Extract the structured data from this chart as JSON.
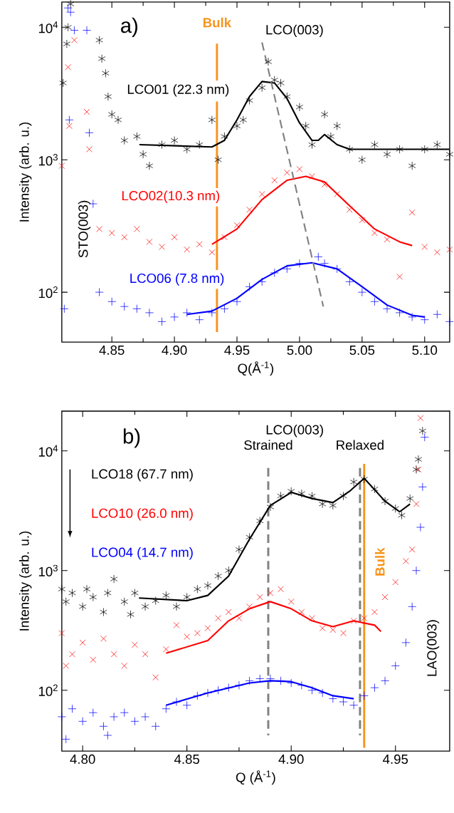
{
  "chart_data": [
    {
      "type": "scatter",
      "log": "y",
      "xlim": [
        4.81,
        5.12
      ],
      "ylim": [
        42,
        15500
      ],
      "xticks": [
        {
          "value": 4.85,
          "label": "4.85"
        },
        {
          "value": 4.9,
          "label": "4.90"
        },
        {
          "value": 4.95,
          "label": "4.95"
        },
        {
          "value": 5.0,
          "label": "5.00"
        },
        {
          "value": 5.05,
          "label": "5.05"
        },
        {
          "value": 5.1,
          "label": "5.10"
        }
      ],
      "yticks": [
        {
          "value": 100,
          "label": "10$^{2}$"
        },
        {
          "value": 1000,
          "label": "10$^{3}$"
        },
        {
          "value": 10000,
          "label": "10$^{4}$"
        }
      ],
      "xlabel": "Q(Å$^{-1}$)",
      "ylabel": "Intensity (arb. u.)",
      "series": [
        {
          "name": "LCO01 (22.3 nm)",
          "color": "#000000",
          "x": [
            4.811,
            4.814,
            4.815,
            4.817,
            4.84,
            4.842,
            4.845,
            4.847,
            4.85,
            4.855,
            4.86,
            4.87,
            4.875,
            4.88,
            4.89,
            4.9,
            4.91,
            4.92,
            4.93,
            4.935,
            4.94,
            4.95,
            4.955,
            4.96,
            4.97,
            4.975,
            4.98,
            4.985,
            4.99,
            5.0,
            5.005,
            5.01,
            5.02,
            5.025,
            5.03,
            5.04,
            5.05,
            5.06,
            5.07,
            5.08,
            5.09,
            5.1,
            5.11,
            5.12
          ],
          "values": [
            3800,
            7500,
            10000,
            15000,
            8000,
            5800,
            4500,
            3000,
            2200,
            2000,
            1400,
            1500,
            1100,
            900,
            1300,
            1400,
            1200,
            1300,
            2000,
            1000,
            1500,
            1800,
            2000,
            2800,
            3500,
            5500,
            4000,
            3800,
            3000,
            2500,
            1800,
            1300,
            2200,
            1500,
            1800,
            1200,
            1000,
            1300,
            1100,
            1200,
            900,
            1200,
            1300,
            1100
          ]
        },
        {
          "type": "line",
          "color": "#000000",
          "marker": "none",
          "x": [
            4.872,
            4.93,
            4.94,
            4.95,
            4.96,
            4.97,
            4.98,
            4.99,
            5.0,
            5.01,
            5.015,
            5.02,
            5.03,
            5.04,
            5.12
          ],
          "values": [
            1300,
            1250,
            1400,
            2000,
            3000,
            3900,
            3800,
            2900,
            1900,
            1400,
            1400,
            1550,
            1300,
            1200,
            1200
          ]
        },
        {
          "name": "LCO02(10.3 nm)",
          "color": "#ff0000",
          "marker": "cross",
          "x": [
            4.81,
            4.815,
            4.816,
            4.82,
            4.83,
            4.832,
            4.84,
            4.85,
            4.86,
            4.87,
            4.88,
            4.89,
            4.9,
            4.91,
            4.92,
            4.93,
            4.94,
            4.95,
            4.96,
            4.97,
            4.98,
            4.99,
            5.0,
            5.01,
            5.02,
            5.03,
            5.04,
            5.05,
            5.06,
            5.07,
            5.08,
            5.09,
            5.1,
            5.11,
            5.12
          ],
          "values": [
            900,
            5000,
            1800,
            8000,
            2300,
            1200,
            300,
            280,
            260,
            300,
            240,
            220,
            260,
            210,
            230,
            200,
            260,
            320,
            420,
            550,
            700,
            800,
            850,
            750,
            650,
            550,
            420,
            350,
            280,
            250,
            131,
            400,
            220,
            200,
            210
          ]
        },
        {
          "type": "line",
          "color": "#ff0000",
          "marker": "none",
          "x": [
            4.93,
            4.95,
            4.97,
            4.99,
            5.005,
            5.02,
            5.04,
            5.06,
            5.08,
            5.09
          ],
          "values": [
            230,
            300,
            500,
            700,
            750,
            680,
            450,
            300,
            240,
            225
          ]
        },
        {
          "name": "LCO06 (7.8 nm)",
          "color": "#0000ff",
          "marker": "plus",
          "x": [
            4.812,
            4.815,
            4.816,
            4.817,
            4.82,
            4.83,
            4.832,
            4.835,
            4.84,
            4.85,
            4.86,
            4.87,
            4.88,
            4.89,
            4.9,
            4.91,
            4.92,
            4.93,
            4.94,
            4.95,
            4.96,
            4.97,
            4.98,
            4.99,
            5.0,
            5.015,
            5.02,
            5.03,
            5.04,
            5.05,
            5.06,
            5.07,
            5.08,
            5.09,
            5.1,
            5.11,
            5.12
          ],
          "values": [
            75,
            14000,
            2000,
            13000,
            9500,
            9500,
            1600,
            465,
            100,
            85,
            78,
            75,
            70,
            60,
            65,
            70,
            62,
            70,
            75,
            85,
            110,
            120,
            140,
            150,
            165,
            185,
            165,
            150,
            120,
            100,
            85,
            75,
            70,
            65,
            62,
            68,
            60
          ]
        },
        {
          "type": "line",
          "color": "#0000ff",
          "marker": "none",
          "x": [
            4.91,
            4.93,
            4.95,
            4.97,
            4.99,
            5.01,
            5.03,
            5.05,
            5.07,
            5.09,
            5.1
          ],
          "values": [
            68,
            72,
            90,
            125,
            158,
            167,
            150,
            110,
            80,
            67,
            65
          ]
        },
        {
          "type": "line",
          "color": "#808080",
          "marker": "none",
          "line_style": "dashed",
          "x": [
            4.97,
            5.019
          ],
          "values": [
            7700,
            78
          ]
        }
      ],
      "ref_lines": [
        {
          "axis": "x",
          "value": 4.934,
          "label": "Bulk",
          "color": "#f7941d"
        }
      ],
      "annotations": [
        "a)",
        "LCO(003)",
        "STO(003)"
      ]
    },
    {
      "type": "scatter",
      "log": "y",
      "xlim": [
        4.79,
        4.976
      ],
      "ylim": [
        31,
        21500
      ],
      "xticks": [
        {
          "value": 4.8,
          "label": "4.80"
        },
        {
          "value": 4.85,
          "label": "4.85"
        },
        {
          "value": 4.9,
          "label": "4.90"
        },
        {
          "value": 4.95,
          "label": "4.95"
        }
      ],
      "yticks": [
        {
          "value": 100,
          "label": "10$^{2}$"
        },
        {
          "value": 1000,
          "label": "10$^{3}$"
        },
        {
          "value": 10000,
          "label": "10$^{4}$"
        }
      ],
      "xlabel": "Q (Å$^{-1}$)",
      "ylabel": "Intensity (arb. u.)",
      "series": [
        {
          "name": "LCO18 (67.7 nm)",
          "color": "#000000",
          "x": [
            4.79,
            4.792,
            4.795,
            4.8,
            4.802,
            4.805,
            4.81,
            4.812,
            4.815,
            4.82,
            4.823,
            4.825,
            4.83,
            4.835,
            4.84,
            4.845,
            4.85,
            4.855,
            4.86,
            4.865,
            4.87,
            4.875,
            4.88,
            4.885,
            4.89,
            4.895,
            4.9,
            4.905,
            4.91,
            4.915,
            4.92,
            4.925,
            4.93,
            4.935,
            4.94,
            4.945,
            4.95,
            4.953,
            4.957,
            4.96,
            4.961,
            4.963
          ],
          "values": [
            700,
            550,
            650,
            500,
            700,
            600,
            450,
            650,
            850,
            550,
            430,
            650,
            500,
            560,
            620,
            500,
            600,
            700,
            750,
            900,
            1000,
            1500,
            1900,
            2600,
            3400,
            4200,
            4600,
            4400,
            4200,
            3600,
            3500,
            4200,
            5500,
            5800,
            4800,
            3800,
            3300,
            2900,
            4000,
            7000,
            8500,
            14700
          ]
        },
        {
          "type": "line",
          "color": "#000000",
          "marker": "none",
          "x": [
            4.827,
            4.85,
            4.86,
            4.87,
            4.88,
            4.89,
            4.9,
            4.91,
            4.92,
            4.928,
            4.935,
            4.945,
            4.952,
            4.957
          ],
          "values": [
            590,
            560,
            620,
            900,
            1830,
            3500,
            4500,
            4000,
            3700,
            4600,
            5900,
            3800,
            3100,
            3600
          ]
        },
        {
          "name": "LCO10 (26.0 nm)",
          "color": "#ff0000",
          "marker": "cross",
          "x": [
            4.79,
            4.792,
            4.795,
            4.8,
            4.805,
            4.81,
            4.815,
            4.82,
            4.825,
            4.83,
            4.835,
            4.84,
            4.845,
            4.85,
            4.855,
            4.86,
            4.865,
            4.87,
            4.875,
            4.88,
            4.885,
            4.89,
            4.895,
            4.9,
            4.905,
            4.91,
            4.915,
            4.92,
            4.925,
            4.93,
            4.935,
            4.94,
            4.945,
            4.95,
            4.955,
            4.958,
            4.96,
            4.961,
            4.962
          ],
          "values": [
            300,
            160,
            200,
            250,
            180,
            270,
            200,
            160,
            240,
            200,
            128,
            220,
            350,
            280,
            300,
            330,
            400,
            450,
            400,
            500,
            600,
            650,
            700,
            550,
            450,
            400,
            330,
            320,
            300,
            380,
            400,
            450,
            600,
            800,
            1200,
            1500,
            3600,
            7000,
            18800
          ]
        },
        {
          "type": "line",
          "color": "#ff0000",
          "marker": "none",
          "x": [
            4.84,
            4.86,
            4.87,
            4.88,
            4.89,
            4.9,
            4.91,
            4.92,
            4.93,
            4.94,
            4.943
          ],
          "values": [
            204,
            260,
            380,
            480,
            550,
            480,
            380,
            340,
            380,
            350,
            310
          ]
        },
        {
          "name": "LCO04 (14.7 nm)",
          "color": "#0000ff",
          "marker": "plus",
          "x": [
            4.79,
            4.792,
            4.795,
            4.8,
            4.805,
            4.81,
            4.812,
            4.815,
            4.82,
            4.825,
            4.83,
            4.835,
            4.84,
            4.845,
            4.85,
            4.855,
            4.86,
            4.865,
            4.87,
            4.875,
            4.88,
            4.885,
            4.89,
            4.895,
            4.9,
            4.905,
            4.91,
            4.915,
            4.92,
            4.925,
            4.93,
            4.935,
            4.94,
            4.945,
            4.95,
            4.955,
            4.958,
            4.96,
            4.962,
            4.963,
            4.964
          ],
          "values": [
            60,
            39,
            70,
            55,
            65,
            50,
            42,
            60,
            65,
            55,
            60,
            50,
            70,
            80,
            75,
            90,
            95,
            100,
            105,
            110,
            120,
            125,
            125,
            120,
            115,
            110,
            100,
            95,
            85,
            80,
            75,
            90,
            105,
            120,
            160,
            250,
            500,
            1000,
            2300,
            5000,
            13000
          ]
        },
        {
          "type": "line",
          "color": "#0000ff",
          "marker": "none",
          "x": [
            4.84,
            4.86,
            4.88,
            4.89,
            4.9,
            4.91,
            4.92,
            4.93
          ],
          "values": [
            75,
            95,
            115,
            120,
            118,
            105,
            90,
            85
          ]
        }
      ],
      "ref_lines": [
        {
          "axis": "x",
          "value": 4.889,
          "label": "Strained",
          "color": "#808080",
          "line_style": "dashed"
        },
        {
          "axis": "x",
          "value": 4.933,
          "label": "Relaxed",
          "color": "#808080",
          "line_style": "dashed"
        },
        {
          "axis": "x",
          "value": 4.935,
          "label": "Bulk",
          "color": "#f7941d"
        }
      ],
      "annotations": [
        "b)",
        "LCO(003)",
        "LAO(003)"
      ]
    }
  ]
}
